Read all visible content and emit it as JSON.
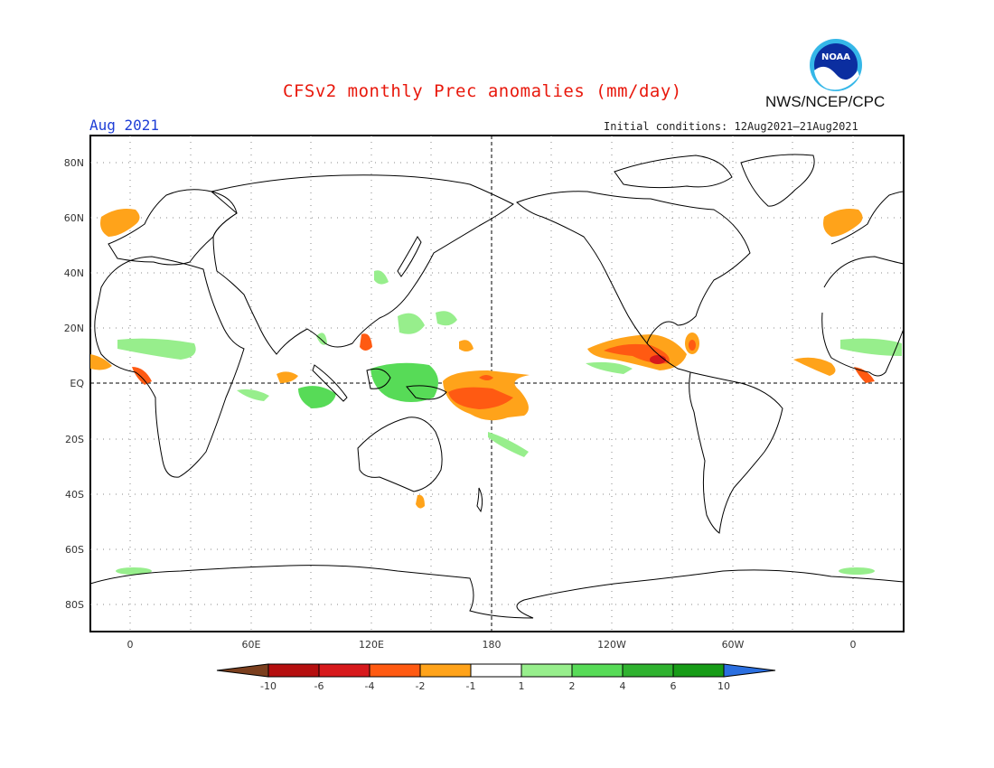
{
  "header": {
    "title": "CFSv2 monthly Prec anomalies (mm/day)",
    "month": "Aug 2021",
    "initial_conditions": "Initial conditions: 12Aug2021–21Aug2021",
    "organization": "NWS/NCEP/CPC",
    "logo_text": "NOAA"
  },
  "map": {
    "lat_labels": [
      "80N",
      "60N",
      "40N",
      "20N",
      "EQ",
      "20S",
      "40S",
      "60S",
      "80S"
    ],
    "lon_labels": [
      "0",
      "60E",
      "120E",
      "180",
      "120W",
      "60W",
      "0"
    ]
  },
  "legend": {
    "labels": [
      "-10",
      "-6",
      "-4",
      "-2",
      "-1",
      "1",
      "2",
      "4",
      "6",
      "10"
    ],
    "colors": [
      "#7b3f1e",
      "#b50f0f",
      "#d7191c",
      "#ff5a12",
      "#ffa31a",
      "#ffffff",
      "#97ee8c",
      "#57db57",
      "#2fb22f",
      "#179c17",
      "#2b6fe0"
    ]
  }
}
